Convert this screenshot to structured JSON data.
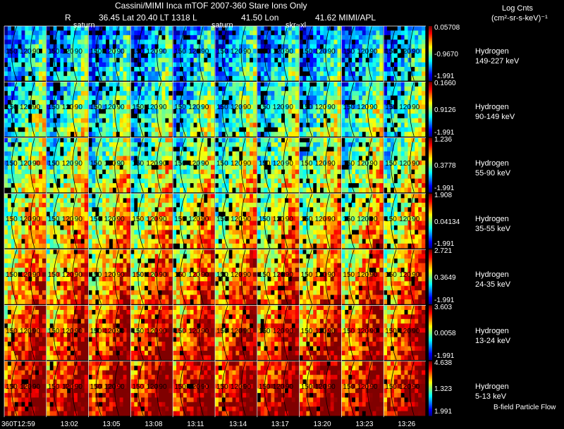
{
  "header": {
    "title": "Cassini/MIMI Inca mTOF  2007-360   Stare   Ions Only",
    "r_label": "R",
    "lat_lt": "36.45 Lat 20.40 LT 1318 L",
    "lon": "41.50 Lon",
    "misc": "41.62  MIMI/APL",
    "overlay_labels": [
      "saturn",
      "saturn",
      "skr~xl"
    ]
  },
  "colorbar_title": "Log Cnts",
  "colorbar_units": "(cm²-sr-s-keV)⁻¹",
  "footer_note": "B-field Particle Flow",
  "grid_labels": [
    "150",
    "120",
    "90"
  ],
  "time_axis": [
    "360T12:59",
    "13:02",
    "13:05",
    "13:08",
    "13:11",
    "13:14",
    "13:17",
    "13:20",
    "13:23",
    "13:26"
  ],
  "colors": {
    "background": "#000000",
    "text": "#ffffff"
  },
  "chart_data": {
    "type": "heatmap",
    "title": "Cassini/MIMI Inca mTOF  2007-360   Stare   Ions Only",
    "xlabel": "",
    "ylabel": "",
    "frames": [
      "360T12:59",
      "13:02",
      "13:05",
      "13:08",
      "13:11",
      "13:14",
      "13:17",
      "13:20",
      "13:23",
      "13:26"
    ],
    "energy_channels": [
      {
        "species": "Hydrogen",
        "range": "149-227 keV",
        "max": "0.05708",
        "mid": "-0.9670",
        "min": "-1.991",
        "level": 0.28
      },
      {
        "species": "Hydrogen",
        "range": "90-149 keV",
        "max": "0.1660",
        "mid": "0.9126",
        "min": "-1.991",
        "level": 0.4
      },
      {
        "species": "Hydrogen",
        "range": "55-90 keV",
        "max": "1.236",
        "mid": "0.3778",
        "min": "-1.991",
        "level": 0.5
      },
      {
        "species": "Hydrogen",
        "range": "35-55 keV",
        "max": "1.908",
        "mid": "0.04134",
        "min": "-1.991",
        "level": 0.6
      },
      {
        "species": "Hydrogen",
        "range": "24-35 keV",
        "max": "2.721",
        "mid": "0.3649",
        "min": "-1.991",
        "level": 0.7
      },
      {
        "species": "Hydrogen",
        "range": "13-24 keV",
        "max": "3.603",
        "mid": "0.0058",
        "min": "-1.991",
        "level": 0.8
      },
      {
        "species": "Hydrogen",
        "range": "5-13 keV",
        "max": "4.638",
        "mid": "1.323",
        "min": "1.991",
        "level": 0.9
      }
    ]
  }
}
